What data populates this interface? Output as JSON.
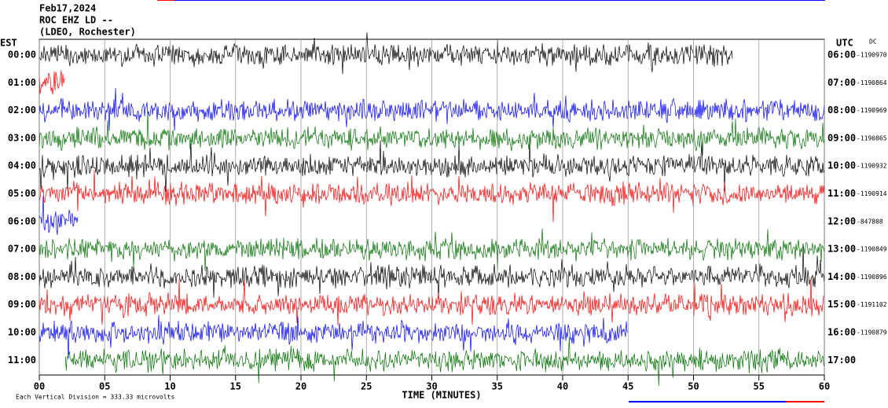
{
  "header": {
    "date": "Feb17,2024",
    "station": "ROC EHZ LD --",
    "location": "(LDEO, Rochester)"
  },
  "left_zone": "EST",
  "right_zone": "UTC",
  "dc_label": "DC",
  "x_label": "TIME (MINUTES)",
  "footnote": "Each Vertical Division =  333.33 microvolts",
  "xticks": [
    {
      "value": 0,
      "label": "00"
    },
    {
      "value": 5,
      "label": "05"
    },
    10,
    15,
    20,
    25,
    30,
    35,
    40,
    45,
    50,
    55,
    60
  ],
  "xlim": [
    0,
    60
  ],
  "colors": [
    "#000000",
    "#ff0000",
    "#0000ff",
    "#007000"
  ],
  "rows": [
    {
      "est": "00:00",
      "utc": "06:00",
      "offset": "-1190970",
      "span": [
        0,
        53
      ]
    },
    {
      "est": "01:00",
      "utc": "07:00",
      "offset": "-1190864",
      "span": [
        0,
        2
      ]
    },
    {
      "est": "02:00",
      "utc": "08:00",
      "offset": "-1190969",
      "span": [
        0,
        60
      ]
    },
    {
      "est": "03:00",
      "utc": "09:00",
      "offset": "-1190865",
      "span": [
        0,
        60
      ]
    },
    {
      "est": "04:00",
      "utc": "10:00",
      "offset": "-1190932",
      "span": [
        0,
        60
      ]
    },
    {
      "est": "05:00",
      "utc": "11:00",
      "offset": "-1190914",
      "span": [
        0,
        60
      ]
    },
    {
      "est": "06:00",
      "utc": "12:00",
      "offset": "-847808",
      "span": [
        0,
        3
      ]
    },
    {
      "est": "07:00",
      "utc": "13:00",
      "offset": "-1190849",
      "span": [
        0,
        60
      ]
    },
    {
      "est": "08:00",
      "utc": "14:00",
      "offset": "-1190896",
      "span": [
        0,
        60
      ]
    },
    {
      "est": "09:00",
      "utc": "15:00",
      "offset": "-1191102",
      "span": [
        0,
        60
      ]
    },
    {
      "est": "10:00",
      "utc": "16:00",
      "offset": "-1190879",
      "span": [
        0,
        45
      ]
    },
    {
      "est": "11:00",
      "utc": "17:00",
      "offset": null,
      "span": [
        2,
        60
      ]
    }
  ]
}
